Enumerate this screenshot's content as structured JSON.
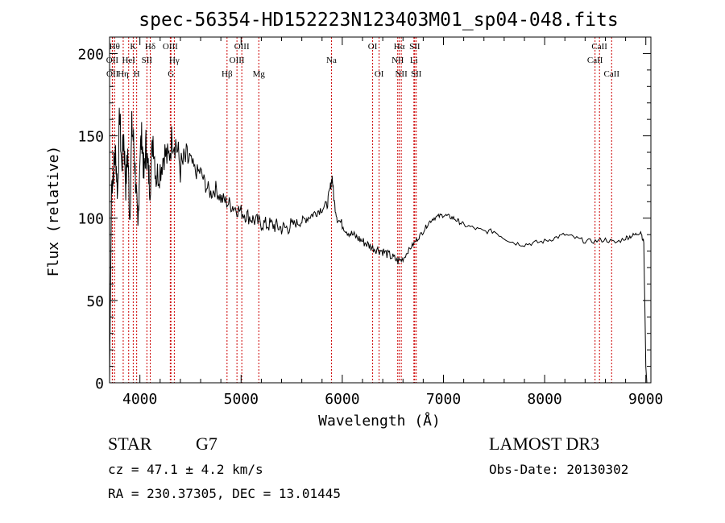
{
  "chart_data": {
    "type": "line",
    "title": "spec-56354-HD152223N123403M01_sp04-048.fits",
    "xlabel": "Wavelength (Å)",
    "ylabel": "Flux (relative)",
    "xlim": [
      3700,
      9050
    ],
    "ylim": [
      0,
      210
    ],
    "xticks": [
      4000,
      5000,
      6000,
      7000,
      8000,
      9000
    ],
    "yticks": [
      0,
      50,
      100,
      150,
      200
    ],
    "grid": false,
    "line_color": "#000000",
    "marker_color": "#cc0000",
    "series": [
      {
        "x": [
          3700,
          3720,
          3740,
          3760,
          3780,
          3800,
          3820,
          3840,
          3860,
          3880,
          3900,
          3920,
          3940,
          3960,
          3980,
          4000,
          4020,
          4040,
          4060,
          4080,
          4100,
          4130,
          4160,
          4200,
          4240,
          4280,
          4320,
          4360,
          4400,
          4450,
          4500,
          4550,
          4600,
          4650,
          4700,
          4750,
          4800,
          4850,
          4900,
          4950,
          5000,
          5050,
          5100,
          5150,
          5200,
          5250,
          5300,
          5350,
          5400,
          5450,
          5500,
          5550,
          5600,
          5650,
          5700,
          5750,
          5800,
          5850,
          5880,
          5900,
          5920,
          5950,
          6000,
          6050,
          6100,
          6150,
          6200,
          6250,
          6300,
          6350,
          6400,
          6450,
          6500,
          6550,
          6600,
          6650,
          6700,
          6750,
          6800,
          6850,
          6900,
          6950,
          7000,
          7050,
          7100,
          7150,
          7200,
          7300,
          7400,
          7500,
          7600,
          7700,
          7800,
          7900,
          8000,
          8100,
          8200,
          8300,
          8400,
          8500,
          8600,
          8700,
          8800,
          8850,
          8900,
          8950,
          8980,
          9000,
          9010
        ],
        "y": [
          2,
          120,
          130,
          140,
          115,
          165,
          130,
          150,
          120,
          140,
          100,
          155,
          145,
          120,
          90,
          140,
          150,
          125,
          145,
          130,
          120,
          150,
          125,
          130,
          140,
          135,
          150,
          145,
          130,
          135,
          135,
          128,
          128,
          120,
          115,
          118,
          112,
          110,
          108,
          106,
          104,
          102,
          100,
          98,
          97,
          96,
          96,
          95,
          94,
          94,
          96,
          97,
          98,
          100,
          102,
          104,
          106,
          108,
          118,
          125,
          110,
          100,
          96,
          92,
          90,
          88,
          86,
          84,
          82,
          81,
          80,
          78,
          76,
          74,
          75,
          80,
          84,
          88,
          92,
          97,
          100,
          101,
          102,
          101,
          100,
          98,
          96,
          94,
          92,
          92,
          88,
          85,
          84,
          85,
          86,
          88,
          90,
          88,
          86,
          86,
          87,
          85,
          88,
          89,
          90,
          92,
          85,
          10,
          0
        ]
      }
    ],
    "line_markers": [
      {
        "label": "OII",
        "x": 3727,
        "row": 1
      },
      {
        "label": "OII",
        "x": 3729,
        "row": 2
      },
      {
        "label": "Hθ",
        "x": 3750,
        "row": 0
      },
      {
        "label": "Hη",
        "x": 3835,
        "row": 2
      },
      {
        "label": "HeI",
        "x": 3889,
        "row": 1
      },
      {
        "label": "K",
        "x": 3934,
        "row": 0
      },
      {
        "label": "H",
        "x": 3968,
        "row": 2
      },
      {
        "label": "SII",
        "x": 4069,
        "row": 1
      },
      {
        "label": "Hδ",
        "x": 4102,
        "row": 0
      },
      {
        "label": "OIII",
        "x": 4300,
        "row": 0
      },
      {
        "label": "Hγ",
        "x": 4340,
        "row": 1
      },
      {
        "label": "G",
        "x": 4307,
        "row": 2
      },
      {
        "label": "Hβ",
        "x": 4861,
        "row": 2
      },
      {
        "label": "OIII",
        "x": 4959,
        "row": 1
      },
      {
        "label": "OIII",
        "x": 5007,
        "row": 0
      },
      {
        "label": "Mg",
        "x": 5175,
        "row": 2
      },
      {
        "label": "Na",
        "x": 5893,
        "row": 1
      },
      {
        "label": "OI",
        "x": 6300,
        "row": 0
      },
      {
        "label": "OI",
        "x": 6364,
        "row": 2
      },
      {
        "label": "Hα",
        "x": 6563,
        "row": 0
      },
      {
        "label": "NII",
        "x": 6548,
        "row": 1
      },
      {
        "label": "NII",
        "x": 6583,
        "row": 2
      },
      {
        "label": "SII",
        "x": 6716,
        "row": 0
      },
      {
        "label": "Li",
        "x": 6708,
        "row": 1
      },
      {
        "label": "SII",
        "x": 6731,
        "row": 2
      },
      {
        "label": "CaII",
        "x": 8542,
        "row": 0
      },
      {
        "label": "CaII",
        "x": 8498,
        "row": 1
      },
      {
        "label": "CaII",
        "x": 8662,
        "row": 2
      }
    ]
  },
  "info": {
    "class_label": "STAR",
    "subclass": "G7",
    "survey": "LAMOST DR3",
    "cz": "cz = 47.1 ± 4.2 km/s",
    "obs_date": "Obs-Date: 20130302",
    "coords": "RA = 230.37305, DEC =  13.01445"
  }
}
